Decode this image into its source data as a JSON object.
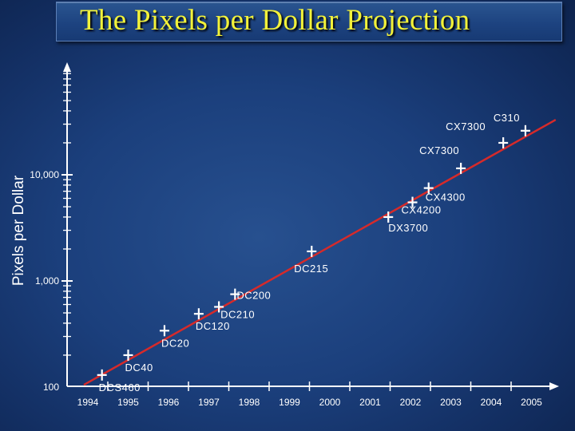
{
  "chart_data": {
    "type": "scatter",
    "title": "The Pixels per Dollar Projection",
    "xlabel": "",
    "ylabel": "Pixels per Dollar",
    "yscale": "log",
    "xlim": [
      1993.9,
      2005.6
    ],
    "ylim": [
      100,
      40000
    ],
    "x_ticks": [
      "1994",
      "1995",
      "1996",
      "1997",
      "1998",
      "1999",
      "2000",
      "2001",
      "2002",
      "2003",
      "2004",
      "2005"
    ],
    "y_ticks": [
      {
        "value": 100,
        "label": "100"
      },
      {
        "value": 1000,
        "label": "1,000"
      },
      {
        "value": 10000,
        "label": "10,000"
      }
    ],
    "points": [
      {
        "label": "DCS460",
        "x": 1994.35,
        "y": 130
      },
      {
        "label": "DC40",
        "x": 1995.0,
        "y": 200
      },
      {
        "label": "DC20",
        "x": 1995.9,
        "y": 340
      },
      {
        "label": "DC120",
        "x": 1996.75,
        "y": 490
      },
      {
        "label": "DC210",
        "x": 1997.25,
        "y": 570
      },
      {
        "label": "DC200",
        "x": 1997.65,
        "y": 750
      },
      {
        "label": "DC215",
        "x": 1999.55,
        "y": 1900
      },
      {
        "label": "DX3700",
        "x": 2001.45,
        "y": 4000
      },
      {
        "label": "CX4200",
        "x": 2002.05,
        "y": 5500
      },
      {
        "label": "CX4300",
        "x": 2002.45,
        "y": 7500
      },
      {
        "label": "CX7300",
        "x": 2003.25,
        "y": 11500
      },
      {
        "label": "CX7300",
        "x": 2004.3,
        "y": 20000
      },
      {
        "label": "C310",
        "x": 2004.85,
        "y": 26000
      }
    ],
    "trendline": {
      "x": [
        1993.9,
        2005.6
      ],
      "y": [
        105,
        33000
      ]
    },
    "colors": {
      "points": "#ffffff",
      "trendline": "#d62a2a",
      "axis": "#ffffff"
    }
  }
}
